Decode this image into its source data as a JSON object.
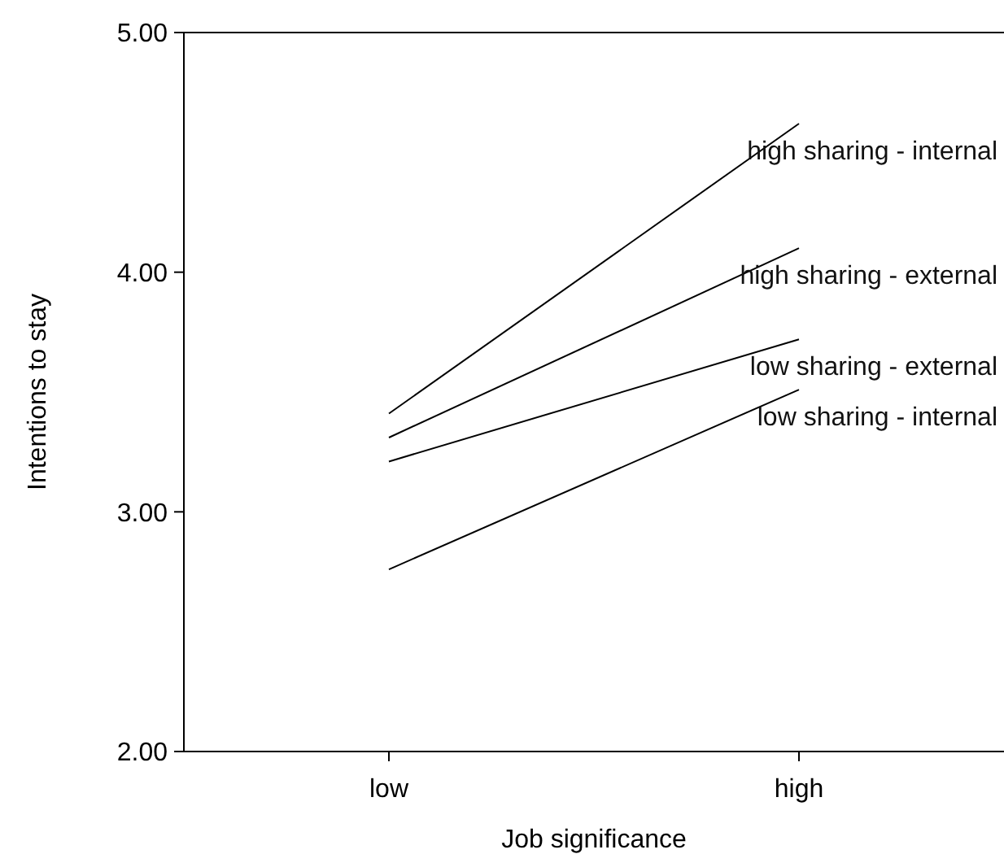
{
  "chart_data": {
    "type": "line",
    "xlabel": "Job significance",
    "ylabel": "Intentions to stay",
    "categories": [
      "low",
      "high"
    ],
    "series": [
      {
        "name": "high sharing - internal",
        "color": "#000000",
        "values": [
          3.41,
          4.62
        ]
      },
      {
        "name": "high sharing - external",
        "color": "#000000",
        "values": [
          3.31,
          4.1
        ]
      },
      {
        "name": "low sharing - external",
        "color": "#000000",
        "values": [
          3.21,
          3.72
        ]
      },
      {
        "name": "low sharing - internal",
        "color": "#000000",
        "values": [
          2.76,
          3.51
        ]
      }
    ],
    "ylim": [
      2,
      5
    ],
    "yticks": [
      {
        "value": 2,
        "label": "2.00"
      },
      {
        "value": 3,
        "label": "3.00"
      },
      {
        "value": 4,
        "label": "4.00"
      },
      {
        "value": 5,
        "label": "5.00"
      }
    ],
    "grid": false,
    "legend": false,
    "marker": "none",
    "line_style": "solid"
  }
}
